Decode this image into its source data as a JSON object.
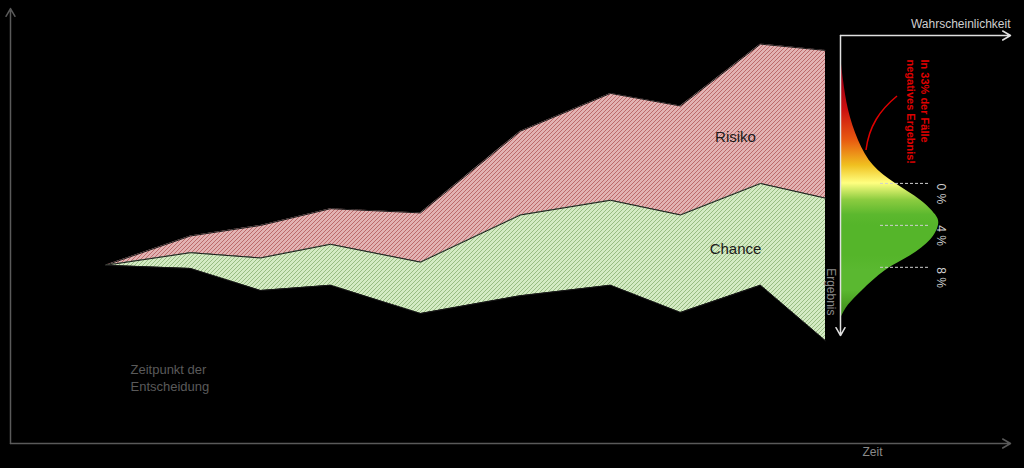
{
  "chart_data": [
    {
      "type": "area",
      "x_label": "Zeit",
      "annotations": [
        "Zeitpunkt der\nEntscheidung"
      ],
      "x": [
        9.5,
        18,
        25,
        32,
        41,
        51,
        60,
        67,
        75,
        81.5
      ],
      "series": [
        {
          "name": "Risiko",
          "color": "#e2b3b3",
          "low": [
            7.8,
            5.0,
            4.0,
            2.4,
            2.8,
            -5.0,
            -8.6,
            -7.4,
            -13.3,
            -12.7
          ],
          "high": [
            7.8,
            6.6,
            7.1,
            5.8,
            7.5,
            3.0,
            1.6,
            3.0,
            0.0,
            1.4
          ]
        },
        {
          "name": "Chance",
          "color": "#d4ebc4",
          "low": [
            7.8,
            6.6,
            7.1,
            5.8,
            7.5,
            3.0,
            1.6,
            3.0,
            0.0,
            1.4
          ],
          "high": [
            7.8,
            8.1,
            10.2,
            9.7,
            12.4,
            10.7,
            9.7,
            12.3,
            9.7,
            15.0
          ]
        }
      ],
      "xlim": [
        0,
        100
      ],
      "xticks": [],
      "ylim": [
        24.8,
        -16.7
      ],
      "yticks": [],
      "tick_labels": false
    },
    {
      "type": "area",
      "orientation": "horizontal",
      "x_label": "Wahrscheinlichkeit",
      "y_label": "Ergebnis",
      "annotations": [
        "In 33% der Fälle\nnegatives Ergebnis!"
      ],
      "y": [
        -12.2,
        -9.8,
        -7.0,
        -4.1,
        -1.7,
        0,
        1.6,
        3.0,
        4.0,
        5.4,
        6.9,
        8.3,
        10.2,
        11.6,
        12.9
      ],
      "values": [
        0,
        3,
        8,
        18,
        33,
        55,
        80,
        95,
        98,
        90,
        70,
        45,
        22,
        8,
        0
      ],
      "colors": [
        "#7a0010",
        "#a00012",
        "#cc1010",
        "#e85a10",
        "#f0c020",
        "#ffff80",
        "#8ccc40",
        "#5cb82e",
        "#55b52a",
        "#55b52a",
        "#55b52a",
        "#5ab830",
        "#5ab830",
        "#4a9e22",
        "#3e8e1c"
      ],
      "xlim": [
        0,
        170
      ],
      "xticks": [],
      "ylim": [
        14.5,
        -14.1
      ],
      "yticks": [
        {
          "value": 0,
          "label": "0 %"
        },
        {
          "value": 4,
          "label": "4 %"
        },
        {
          "value": 8,
          "label": "8 %"
        }
      ]
    }
  ]
}
